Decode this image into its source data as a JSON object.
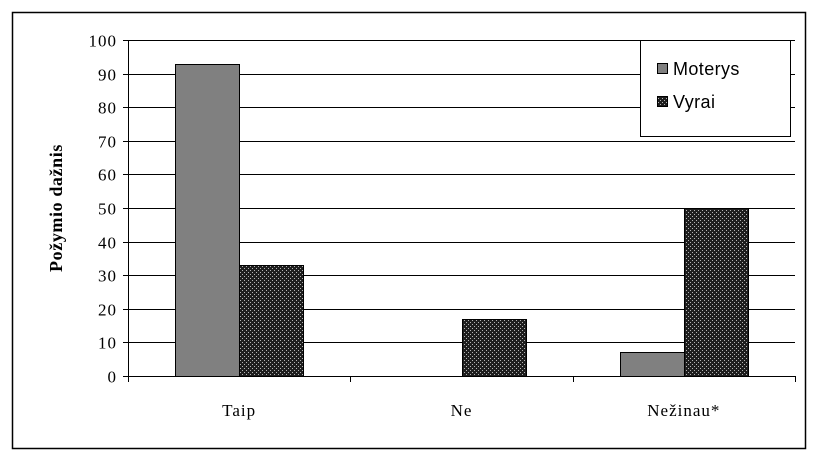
{
  "chart_data": {
    "type": "bar",
    "categories": [
      "Taip",
      "Ne",
      "Nežinau*"
    ],
    "series": [
      {
        "name": "Moterys",
        "values": [
          93,
          0,
          7
        ],
        "color": "#808080"
      },
      {
        "name": "Vyrai",
        "values": [
          33,
          17,
          50
        ],
        "color": "#1e1e1e",
        "pattern": "dotted"
      }
    ],
    "ylabel": "Požymio dažnis",
    "ylim": [
      0,
      100
    ],
    "yticks": [
      0,
      10,
      20,
      30,
      40,
      50,
      60,
      70,
      80,
      90,
      100
    ],
    "grid": true,
    "legend": "top-right"
  }
}
